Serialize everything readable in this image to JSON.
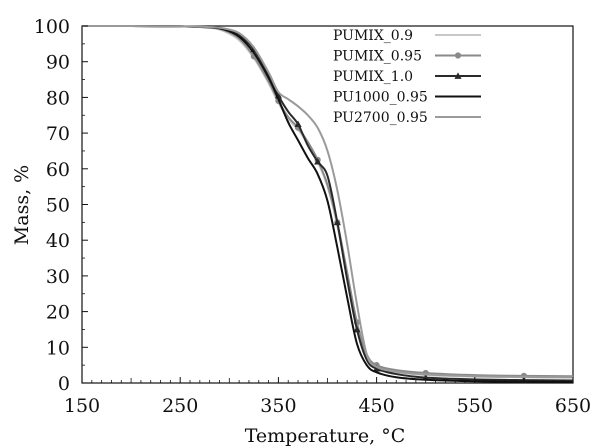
{
  "chart_data": {
    "type": "line",
    "xlabel": "Temperature, °C",
    "ylabel": "Mass, %",
    "xlim": [
      150,
      650
    ],
    "ylim": [
      0,
      100
    ],
    "xticks": [
      150,
      250,
      350,
      450,
      550,
      650
    ],
    "yticks": [
      0,
      10,
      20,
      30,
      40,
      50,
      60,
      70,
      80,
      90,
      100
    ],
    "grid": false,
    "legend_position": "top-right",
    "series": [
      {
        "name": "PUMIX_0.9",
        "color": "#c8c8c8",
        "marker": "none",
        "x": [
          150,
          200,
          250,
          280,
          295,
          310,
          325,
          340,
          350,
          360,
          370,
          380,
          390,
          400,
          410,
          420,
          430,
          440,
          450,
          470,
          500,
          550,
          600,
          650
        ],
        "y": [
          100,
          100,
          99.9,
          99.5,
          98.5,
          96,
          91,
          84,
          78.5,
          74,
          71,
          67,
          62,
          55,
          44,
          30,
          16,
          7,
          4,
          3,
          2.2,
          1.8,
          1.6,
          1.5
        ]
      },
      {
        "name": "PUMIX_0.95",
        "color": "#8a8a8a",
        "marker": "circle",
        "x": [
          150,
          200,
          250,
          280,
          295,
          310,
          325,
          340,
          350,
          360,
          370,
          380,
          390,
          400,
          410,
          420,
          430,
          440,
          450,
          470,
          500,
          550,
          600,
          650
        ],
        "y": [
          100,
          100,
          99.9,
          99.6,
          98.8,
          96.5,
          91.5,
          84.5,
          79,
          74.5,
          71.5,
          67.5,
          62.5,
          55.5,
          45,
          31,
          17,
          8,
          5,
          3.6,
          2.8,
          2.2,
          2,
          1.9
        ]
      },
      {
        "name": "PUMIX_1.0",
        "color": "#2a2a2a",
        "marker": "triangle",
        "x": [
          150,
          200,
          250,
          280,
          295,
          310,
          325,
          340,
          350,
          360,
          370,
          380,
          390,
          400,
          410,
          420,
          430,
          440,
          450,
          470,
          500,
          550,
          600,
          650
        ],
        "y": [
          100,
          100,
          99.9,
          99.7,
          99.2,
          97.5,
          93.5,
          86.5,
          80.5,
          76,
          72.5,
          66.5,
          62,
          58,
          45,
          29,
          15,
          6.5,
          4,
          2.5,
          1.5,
          1.0,
          0.8,
          0.7
        ]
      },
      {
        "name": "PU1000_0.95",
        "color": "#111111",
        "marker": "none",
        "x": [
          150,
          200,
          250,
          280,
          295,
          310,
          325,
          340,
          350,
          360,
          370,
          380,
          390,
          400,
          410,
          420,
          430,
          440,
          450,
          470,
          500,
          550,
          600,
          650
        ],
        "y": [
          100,
          100,
          99.9,
          99.6,
          99,
          97,
          92.5,
          85.5,
          79.5,
          73,
          68,
          63,
          58.5,
          51,
          38,
          24,
          11,
          5,
          3,
          1.6,
          0.9,
          0.5,
          0.4,
          0.3
        ]
      },
      {
        "name": "PU2700_0.95",
        "color": "#9a9a9a",
        "marker": "none",
        "x": [
          150,
          200,
          250,
          280,
          295,
          310,
          325,
          340,
          350,
          360,
          370,
          380,
          390,
          400,
          410,
          420,
          430,
          440,
          450,
          470,
          500,
          550,
          600,
          650
        ],
        "y": [
          100,
          100,
          99.9,
          99.7,
          99.3,
          98,
          94,
          87,
          81.5,
          79.5,
          77.5,
          75,
          71.5,
          65,
          54,
          39,
          22,
          8,
          4.5,
          3.2,
          2.4,
          1.9,
          1.7,
          1.6
        ]
      }
    ]
  }
}
